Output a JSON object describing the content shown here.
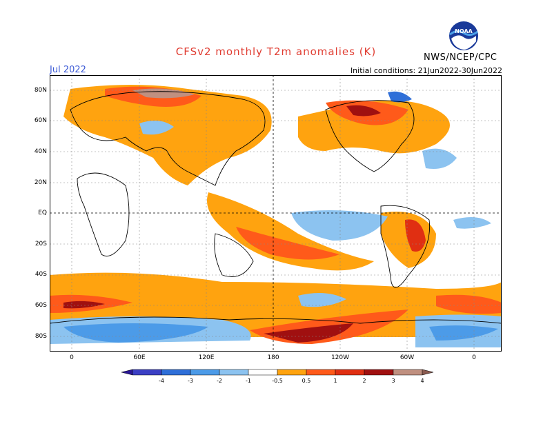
{
  "header": {
    "title": "CFSv2 monthly T2m anomalies (K)",
    "month": "Jul 2022",
    "initial_conditions": "Initial conditions: 21Jun2022-30Jun2022",
    "credit": "NWS/NCEP/CPC",
    "logo_text": "NOAA"
  },
  "axes": {
    "lat_labels": [
      "80N",
      "60N",
      "40N",
      "20N",
      "EQ",
      "20S",
      "40S",
      "60S",
      "80S"
    ],
    "lon_labels": [
      "0",
      "60E",
      "120E",
      "180",
      "120W",
      "60W",
      "0"
    ]
  },
  "colorbar": {
    "labels": [
      "-4",
      "-3",
      "-2",
      "-1",
      "-0.5",
      "0.5",
      "1",
      "2",
      "3",
      "4"
    ],
    "colors": [
      "#2a1796",
      "#3b3fc4",
      "#2f6fd8",
      "#4c9be8",
      "#8cc3f0",
      "#ffffff",
      "#ffa30f",
      "#ff5a1a",
      "#e02f12",
      "#a01010",
      "#c09080",
      "#8a5a50"
    ]
  }
}
